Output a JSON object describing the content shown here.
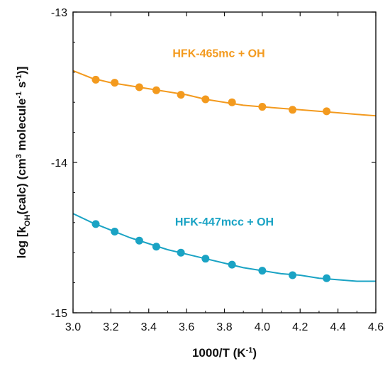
{
  "chart_data": {
    "type": "scatter",
    "xlabel": {
      "parts": [
        {
          "text": "1000/T (K",
          "style": "normal"
        },
        {
          "text": "-1",
          "style": "sup"
        },
        {
          "text": ")",
          "style": "normal"
        }
      ]
    },
    "ylabel": {
      "parts": [
        {
          "text": "log [k",
          "style": "normal"
        },
        {
          "text": "OH",
          "style": "sub"
        },
        {
          "text": "(calc) (cm",
          "style": "normal"
        },
        {
          "text": "3",
          "style": "sup"
        },
        {
          "text": " molecule",
          "style": "normal"
        },
        {
          "text": "-1",
          "style": "sup"
        },
        {
          "text": " s",
          "style": "normal"
        },
        {
          "text": "-1",
          "style": "sup"
        },
        {
          "text": ")]",
          "style": "normal"
        }
      ]
    },
    "xlim": [
      3.0,
      4.6
    ],
    "ylim": [
      -15,
      -13
    ],
    "x_ticks": [
      "3.0",
      "3.2",
      "3.4",
      "3.6",
      "3.8",
      "4.0",
      "4.2",
      "4.4",
      "4.6"
    ],
    "y_ticks": [
      "-13",
      "-14",
      "-15"
    ],
    "grid": false,
    "series": [
      {
        "name": "HFK-465mc + OH",
        "color": "#F39A1E",
        "points": [
          [
            3.12,
            -13.45
          ],
          [
            3.22,
            -13.47
          ],
          [
            3.35,
            -13.5
          ],
          [
            3.44,
            -13.52
          ],
          [
            3.57,
            -13.55
          ],
          [
            3.7,
            -13.58
          ],
          [
            3.84,
            -13.6
          ],
          [
            4.0,
            -13.63
          ],
          [
            4.16,
            -13.65
          ],
          [
            4.34,
            -13.66
          ]
        ],
        "curve": [
          [
            3.0,
            -13.39
          ],
          [
            3.1,
            -13.44
          ],
          [
            3.2,
            -13.47
          ],
          [
            3.3,
            -13.49
          ],
          [
            3.4,
            -13.51
          ],
          [
            3.5,
            -13.53
          ],
          [
            3.6,
            -13.55
          ],
          [
            3.7,
            -13.58
          ],
          [
            3.8,
            -13.6
          ],
          [
            3.9,
            -13.62
          ],
          [
            4.0,
            -13.63
          ],
          [
            4.1,
            -13.64
          ],
          [
            4.2,
            -13.65
          ],
          [
            4.3,
            -13.66
          ],
          [
            4.4,
            -13.67
          ],
          [
            4.5,
            -13.68
          ],
          [
            4.6,
            -13.69
          ]
        ]
      },
      {
        "name": "HFK-447mcc + OH",
        "color": "#1AA3C4",
        "points": [
          [
            3.12,
            -14.41
          ],
          [
            3.22,
            -14.46
          ],
          [
            3.35,
            -14.52
          ],
          [
            3.44,
            -14.56
          ],
          [
            3.57,
            -14.6
          ],
          [
            3.7,
            -14.64
          ],
          [
            3.84,
            -14.68
          ],
          [
            4.0,
            -14.72
          ],
          [
            4.16,
            -14.75
          ],
          [
            4.34,
            -14.77
          ]
        ],
        "curve": [
          [
            3.0,
            -14.34
          ],
          [
            3.1,
            -14.4
          ],
          [
            3.2,
            -14.45
          ],
          [
            3.3,
            -14.5
          ],
          [
            3.4,
            -14.54
          ],
          [
            3.5,
            -14.58
          ],
          [
            3.6,
            -14.61
          ],
          [
            3.7,
            -14.64
          ],
          [
            3.8,
            -14.67
          ],
          [
            3.9,
            -14.7
          ],
          [
            4.0,
            -14.72
          ],
          [
            4.1,
            -14.74
          ],
          [
            4.2,
            -14.75
          ],
          [
            4.3,
            -14.77
          ],
          [
            4.4,
            -14.78
          ],
          [
            4.5,
            -14.79
          ],
          [
            4.6,
            -14.79
          ]
        ]
      }
    ],
    "annotations": [
      {
        "text": "HFK-465mc + OH",
        "series": 0,
        "x": 3.77,
        "y": -13.3
      },
      {
        "text": "HFK-447mcc + OH",
        "series": 1,
        "x": 3.8,
        "y": -14.42
      }
    ]
  }
}
